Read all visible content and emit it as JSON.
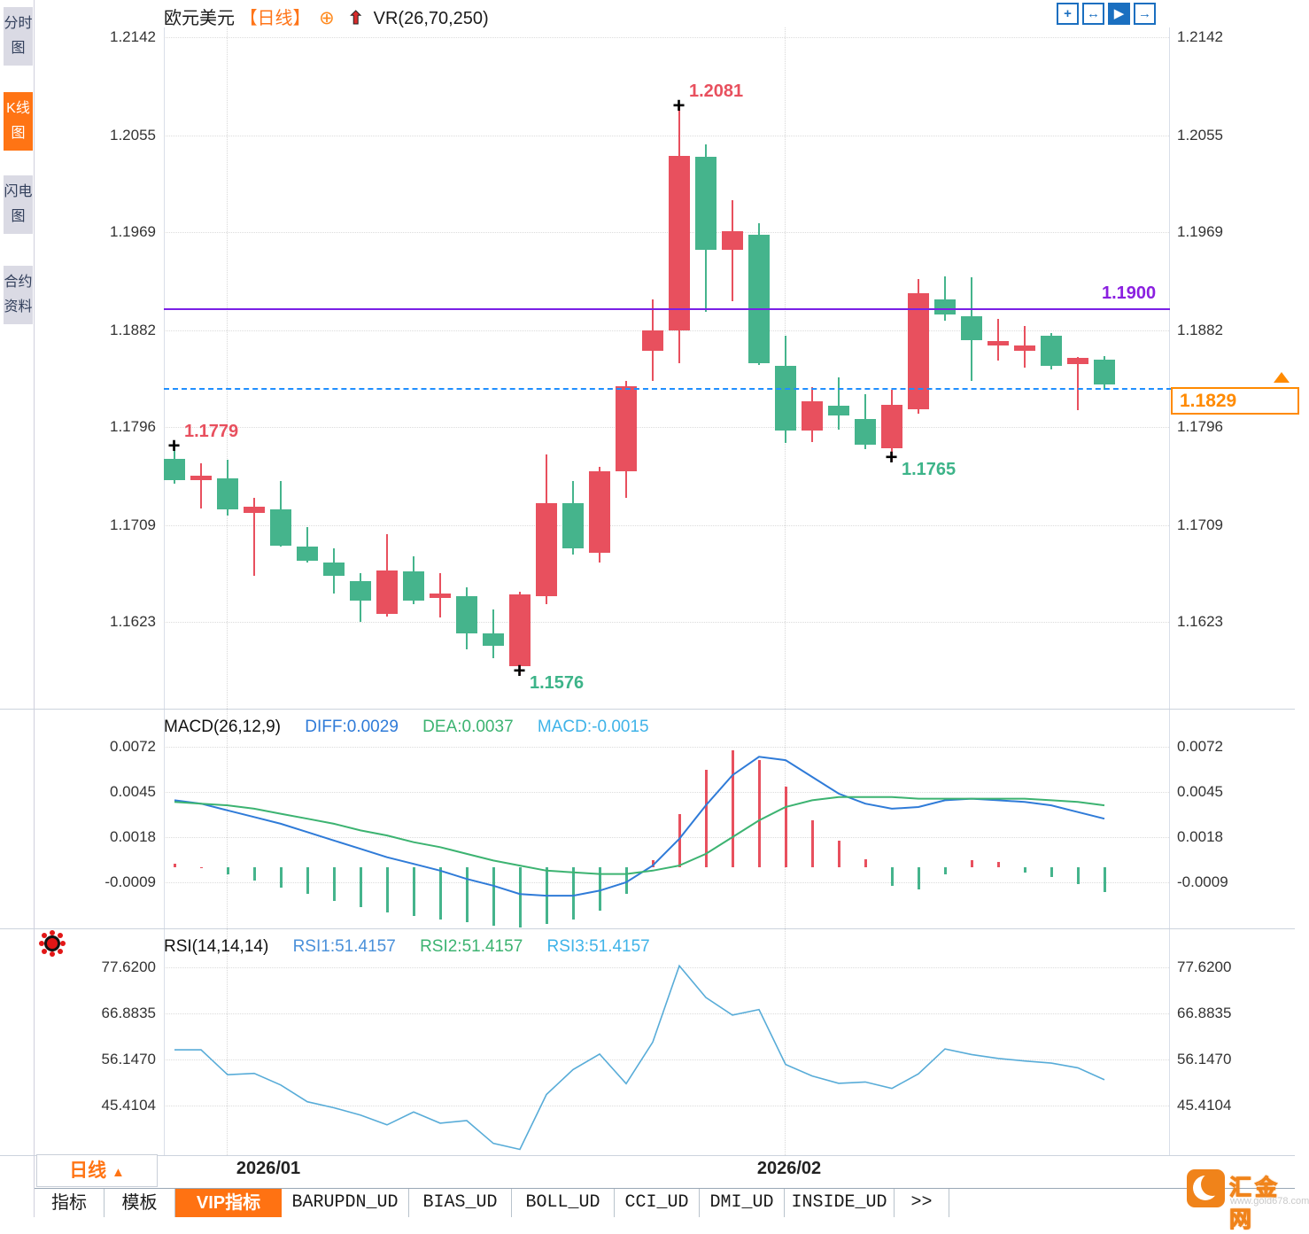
{
  "sidebar": {
    "items": [
      {
        "label": "分时图",
        "active": false
      },
      {
        "label": "K线图",
        "active": true
      },
      {
        "label": "闪电图",
        "active": false
      },
      {
        "label": "合约资料",
        "active": false
      }
    ]
  },
  "header": {
    "symbol": "欧元美元",
    "period": "【日线】",
    "indicator": "VR(26,70,250)",
    "toolbar_icons": [
      {
        "name": "pan-icon",
        "glyph": "+",
        "active": false
      },
      {
        "name": "x-axis-scale-icon",
        "glyph": "↔",
        "active": false
      },
      {
        "name": "auto-fit-icon",
        "glyph": "▶",
        "active": true
      },
      {
        "name": "shift-right-icon",
        "glyph": "→",
        "active": false
      }
    ]
  },
  "chart_data": [
    {
      "id": "price",
      "type": "candlestick",
      "title": "欧元美元 日线 (EUR/USD daily)",
      "y_ticks": [
        "1.2142",
        "1.2055",
        "1.1969",
        "1.1882",
        "1.1796",
        "1.1709",
        "1.1623"
      ],
      "x_ticks": [
        "2026/01",
        "2026/02"
      ],
      "up_color": "#e8505e",
      "down_color": "#45b48c",
      "candles": [
        [
          1.1768,
          1.1779,
          1.1746,
          1.1749
        ],
        [
          1.1749,
          1.1764,
          1.1724,
          1.1753
        ],
        [
          1.175,
          1.1767,
          1.1717,
          1.1723
        ],
        [
          1.172,
          1.1733,
          1.1664,
          1.1725
        ],
        [
          1.1723,
          1.1748,
          1.169,
          1.1691
        ],
        [
          1.169,
          1.1707,
          1.1676,
          1.1677
        ],
        [
          1.1676,
          1.1688,
          1.1648,
          1.1664
        ],
        [
          1.1659,
          1.1666,
          1.1623,
          1.1642
        ],
        [
          1.163,
          1.1701,
          1.1628,
          1.1669
        ],
        [
          1.1668,
          1.1681,
          1.1639,
          1.1642
        ],
        [
          1.1644,
          1.1666,
          1.1627,
          1.1648
        ],
        [
          1.1646,
          1.1654,
          1.1599,
          1.1613
        ],
        [
          1.1613,
          1.1634,
          1.1591,
          1.1602
        ],
        [
          1.1584,
          1.165,
          1.1576,
          1.1647
        ],
        [
          1.1646,
          1.1772,
          1.1639,
          1.1728
        ],
        [
          1.1728,
          1.1748,
          1.1683,
          1.1688
        ],
        [
          1.1684,
          1.1761,
          1.1676,
          1.1757
        ],
        [
          1.1757,
          1.1837,
          1.1733,
          1.1832
        ],
        [
          1.1864,
          1.1909,
          1.1837,
          1.1882
        ],
        [
          1.1882,
          1.2081,
          1.1853,
          1.2037
        ],
        [
          1.2036,
          1.2047,
          1.1898,
          1.1953
        ],
        [
          1.1953,
          1.1997,
          1.1908,
          1.197
        ],
        [
          1.1967,
          1.1977,
          1.1851,
          1.1853
        ],
        [
          1.185,
          1.1877,
          1.1782,
          1.1793
        ],
        [
          1.1793,
          1.1831,
          1.1783,
          1.1819
        ],
        [
          1.1815,
          1.184,
          1.1794,
          1.1806
        ],
        [
          1.1803,
          1.1825,
          1.1776,
          1.178
        ],
        [
          1.1777,
          1.1829,
          1.1765,
          1.1816
        ],
        [
          1.1812,
          1.1927,
          1.1808,
          1.1915
        ],
        [
          1.1909,
          1.193,
          1.189,
          1.1896
        ],
        [
          1.1894,
          1.1929,
          1.1837,
          1.1873
        ],
        [
          1.1868,
          1.1892,
          1.1855,
          1.1872
        ],
        [
          1.1864,
          1.1886,
          1.1849,
          1.1868
        ],
        [
          1.1877,
          1.1879,
          1.1847,
          1.185
        ],
        [
          1.1852,
          1.1858,
          1.1811,
          1.1857
        ],
        [
          1.1856,
          1.1859,
          1.1829,
          1.1834
        ]
      ],
      "annotations": [
        {
          "label": "1.1779",
          "index": 0,
          "type": "high",
          "color": "#e8505e"
        },
        {
          "label": "1.2081",
          "index": 19,
          "type": "high",
          "color": "#e8505e"
        },
        {
          "label": "1.1576",
          "index": 13,
          "type": "low",
          "color": "#3db489"
        },
        {
          "label": "1.1765",
          "index": 27,
          "type": "low",
          "color": "#3db489"
        }
      ],
      "lines": [
        {
          "label": "1.1900",
          "value": 1.19,
          "style": "solid",
          "color": "#7a1fe6"
        },
        {
          "label": "1.1829",
          "value": 1.1829,
          "style": "dashed",
          "color": "#1f8fff",
          "tag_color": "#ff8a00"
        }
      ]
    },
    {
      "id": "macd",
      "type": "macd",
      "header": {
        "title": "MACD(26,12,9)",
        "diff": "DIFF:0.0029",
        "dea": "DEA:0.0037",
        "macd": "MACD:-0.0015"
      },
      "y_ticks": [
        "0.0072",
        "0.0045",
        "0.0018",
        "-0.0009"
      ],
      "diff_color": "#2f7bd8",
      "dea_color": "#3cb371",
      "macd_value_color": "#3fb3e8",
      "hist_up_color": "#e8505e",
      "hist_down_color": "#45b48c",
      "diff": [
        0.004,
        0.0038,
        0.0034,
        0.003,
        0.0026,
        0.0021,
        0.0016,
        0.0011,
        0.0006,
        0.0002,
        -0.0002,
        -0.0007,
        -0.0011,
        -0.0016,
        -0.0017,
        -0.0017,
        -0.0014,
        -0.0009,
        0.0001,
        0.0017,
        0.0037,
        0.0055,
        0.0066,
        0.0064,
        0.0054,
        0.0044,
        0.0038,
        0.0035,
        0.0036,
        0.004,
        0.0041,
        0.004,
        0.0039,
        0.0037,
        0.0033,
        0.0029
      ],
      "dea": [
        0.0039,
        0.0038,
        0.0037,
        0.0035,
        0.0032,
        0.0029,
        0.0026,
        0.0022,
        0.0019,
        0.0015,
        0.0012,
        0.0008,
        0.0004,
        0.0001,
        -0.0002,
        -0.0003,
        -0.0004,
        -0.0004,
        -0.0002,
        0.0001,
        0.0008,
        0.0018,
        0.0028,
        0.0036,
        0.004,
        0.0042,
        0.0042,
        0.0042,
        0.0041,
        0.0041,
        0.0041,
        0.0041,
        0.0041,
        0.004,
        0.0039,
        0.0037
      ],
      "hist": [
        0.0002,
        0.0,
        -0.0004,
        -0.0008,
        -0.0012,
        -0.0016,
        -0.002,
        -0.0024,
        -0.0027,
        -0.0029,
        -0.0031,
        -0.0033,
        -0.0035,
        -0.0036,
        -0.0034,
        -0.0031,
        -0.0026,
        -0.0016,
        0.0004,
        0.0032,
        0.0058,
        0.007,
        0.0064,
        0.0048,
        0.0028,
        0.0016,
        0.0005,
        -0.0011,
        -0.0013,
        -0.0004,
        0.0004,
        0.0003,
        -0.0003,
        -0.0006,
        -0.001,
        -0.0015
      ]
    },
    {
      "id": "rsi",
      "type": "line",
      "header": {
        "title": "RSI(14,14,14)",
        "rsi1": "RSI1:51.4157",
        "rsi2": "RSI2:51.4157",
        "rsi3": "RSI3:51.4157"
      },
      "y_ticks": [
        "77.6200",
        "66.8835",
        "56.1470",
        "45.4104"
      ],
      "rsi1_color": "#4a90d9",
      "rsi2_color": "#3cb371",
      "rsi3_color": "#3fb3e8",
      "line_color": "#58acd8",
      "rsi": [
        58.4,
        58.4,
        52.6,
        52.9,
        50.2,
        46.3,
        44.9,
        43.2,
        40.9,
        43.9,
        41.3,
        41.9,
        36.6,
        35.2,
        48.0,
        53.8,
        57.4,
        50.5,
        60.2,
        78.0,
        70.6,
        66.5,
        67.8,
        55.0,
        52.3,
        50.6,
        50.9,
        49.4,
        52.8,
        58.6,
        57.3,
        56.4,
        55.8,
        55.3,
        54.2,
        51.4157
      ]
    }
  ],
  "bottom": {
    "period_button": {
      "label": "日线",
      "arrow": "▲"
    },
    "tabs": [
      {
        "label": "指标",
        "active": false
      },
      {
        "label": "模板",
        "active": false
      },
      {
        "label": "VIP指标",
        "active": true
      },
      {
        "label": "BARUPDN_UD",
        "active": false
      },
      {
        "label": "BIAS_UD",
        "active": false
      },
      {
        "label": "BOLL_UD",
        "active": false
      },
      {
        "label": "CCI_UD",
        "active": false
      },
      {
        "label": "DMI_UD",
        "active": false
      },
      {
        "label": "INSIDE_UD",
        "active": false
      },
      {
        "label": ">>",
        "active": false
      }
    ]
  },
  "watermark": {
    "name": "汇金网",
    "url": "www.gold678.com"
  }
}
